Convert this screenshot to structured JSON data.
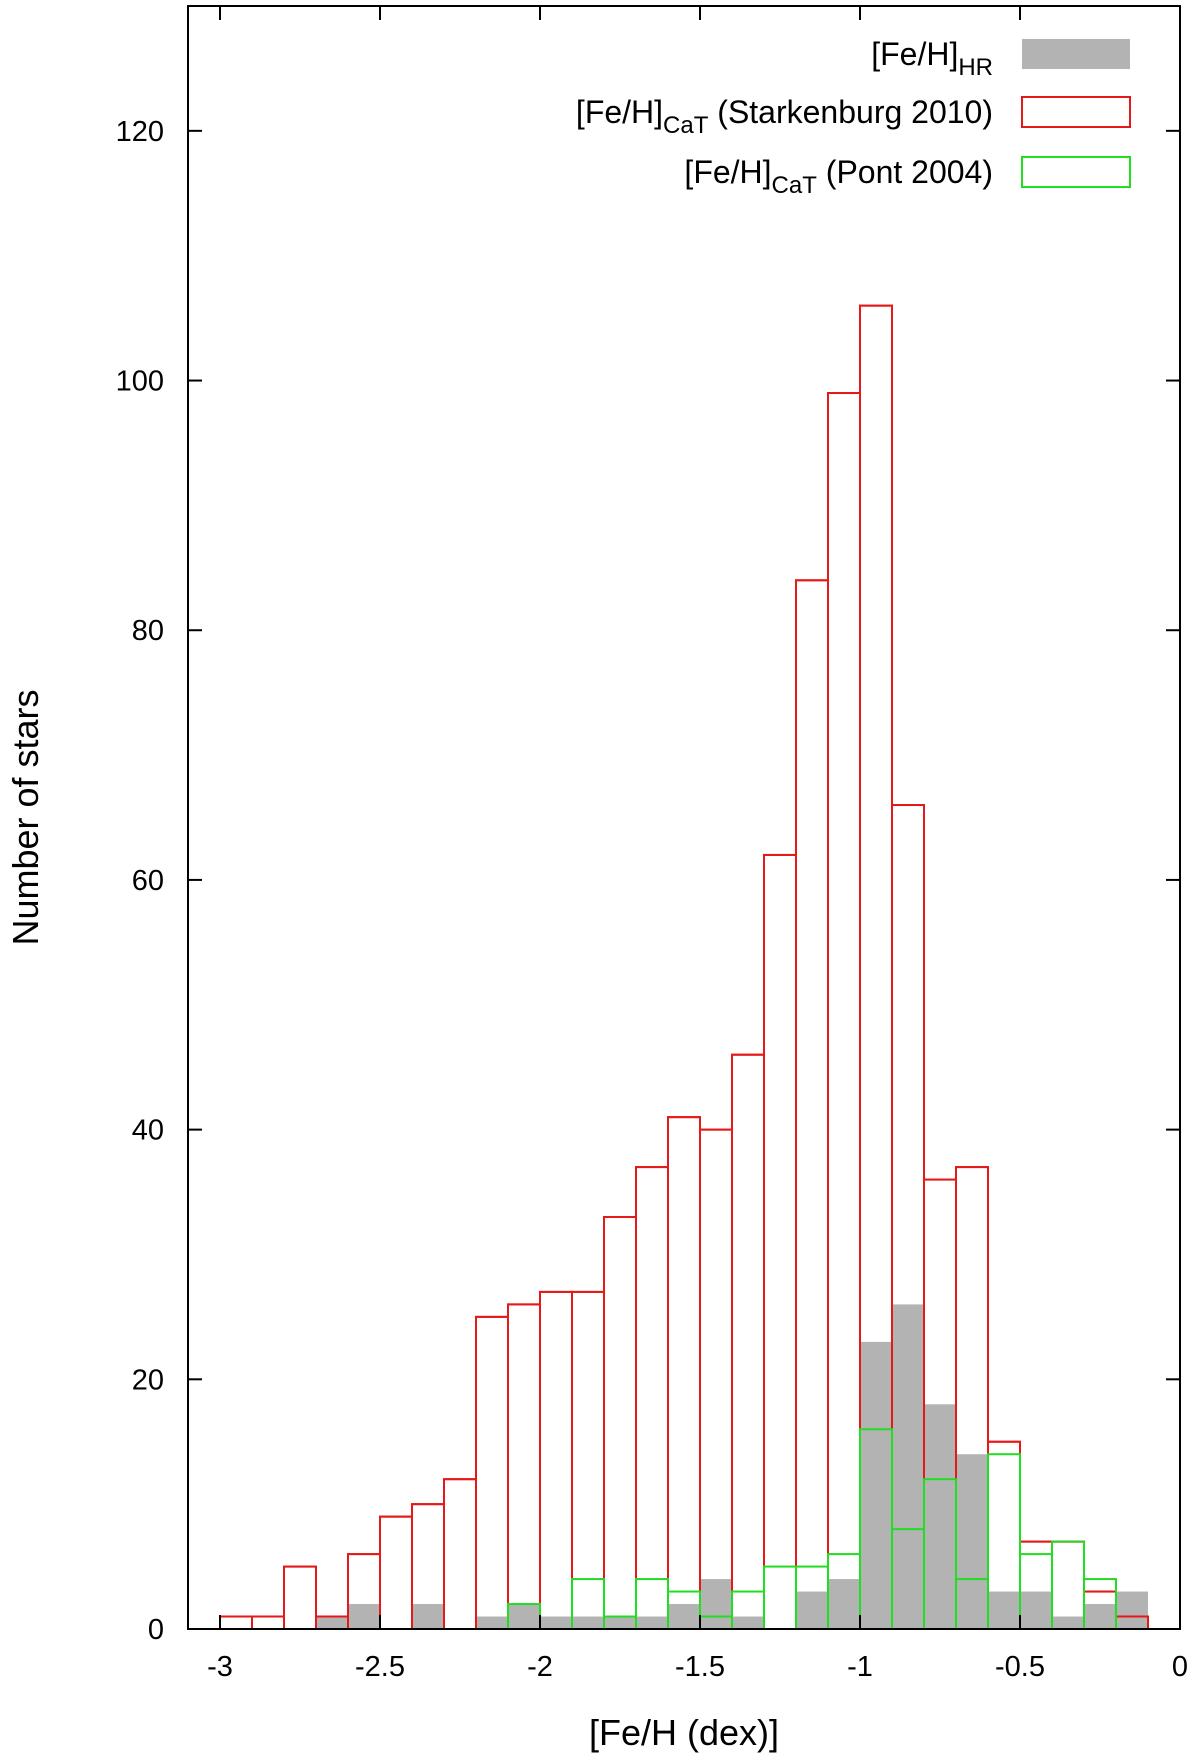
{
  "chart_data": {
    "type": "histogram",
    "xlabel": "[Fe/H (dex)]",
    "ylabel": "Number of stars",
    "xlim": [
      -3.1,
      0
    ],
    "ylim": [
      0,
      130
    ],
    "x_ticks": [
      -3,
      -2.5,
      -2,
      -1.5,
      -1,
      -0.5,
      0
    ],
    "x_tick_labels": [
      "-3",
      "-2.5",
      "-2",
      "-1.5",
      "-1",
      "-0.5",
      "0"
    ],
    "y_ticks": [
      0,
      20,
      40,
      60,
      80,
      100,
      120
    ],
    "y_tick_labels": [
      "0",
      "20",
      "40",
      "60",
      "80",
      "100",
      "120"
    ],
    "bin_width": 0.1,
    "bin_starts": [
      -3.0,
      -2.9,
      -2.8,
      -2.7,
      -2.6,
      -2.5,
      -2.4,
      -2.3,
      -2.2,
      -2.1,
      -2.0,
      -1.9,
      -1.8,
      -1.7,
      -1.6,
      -1.5,
      -1.4,
      -1.3,
      -1.2,
      -1.1,
      -1.0,
      -0.9,
      -0.8,
      -0.7,
      -0.6,
      -0.5,
      -0.4,
      -0.3,
      -0.2
    ],
    "legend_position": "top-right",
    "series": [
      {
        "name": "[Fe/H]",
        "name_subscript": "HR",
        "style": "filled",
        "color": "#b3b3b3",
        "values": [
          0,
          0,
          0,
          1,
          2,
          0,
          2,
          0,
          1,
          2,
          1,
          1,
          1,
          1,
          2,
          4,
          1,
          0,
          3,
          4,
          23,
          26,
          18,
          14,
          3,
          3,
          1,
          2,
          3
        ]
      },
      {
        "name": "[Fe/H]",
        "name_subscript": "CaT",
        "name_suffix": " (Starkenburg 2010)",
        "style": "outline",
        "color": "#e41a1a",
        "values": [
          1,
          1,
          5,
          1,
          6,
          9,
          10,
          12,
          25,
          26,
          27,
          27,
          33,
          37,
          41,
          40,
          46,
          62,
          84,
          99,
          106,
          66,
          36,
          37,
          15,
          7,
          7,
          3,
          1
        ]
      },
      {
        "name": "[Fe/H]",
        "name_subscript": "CaT",
        "name_suffix": " (Pont 2004)",
        "style": "outline",
        "color": "#22dd22",
        "values": [
          0,
          0,
          0,
          0,
          0,
          0,
          0,
          0,
          0,
          2,
          0,
          4,
          1,
          4,
          3,
          1,
          3,
          5,
          5,
          6,
          16,
          8,
          12,
          4,
          14,
          6,
          7,
          4,
          0
        ]
      }
    ]
  }
}
